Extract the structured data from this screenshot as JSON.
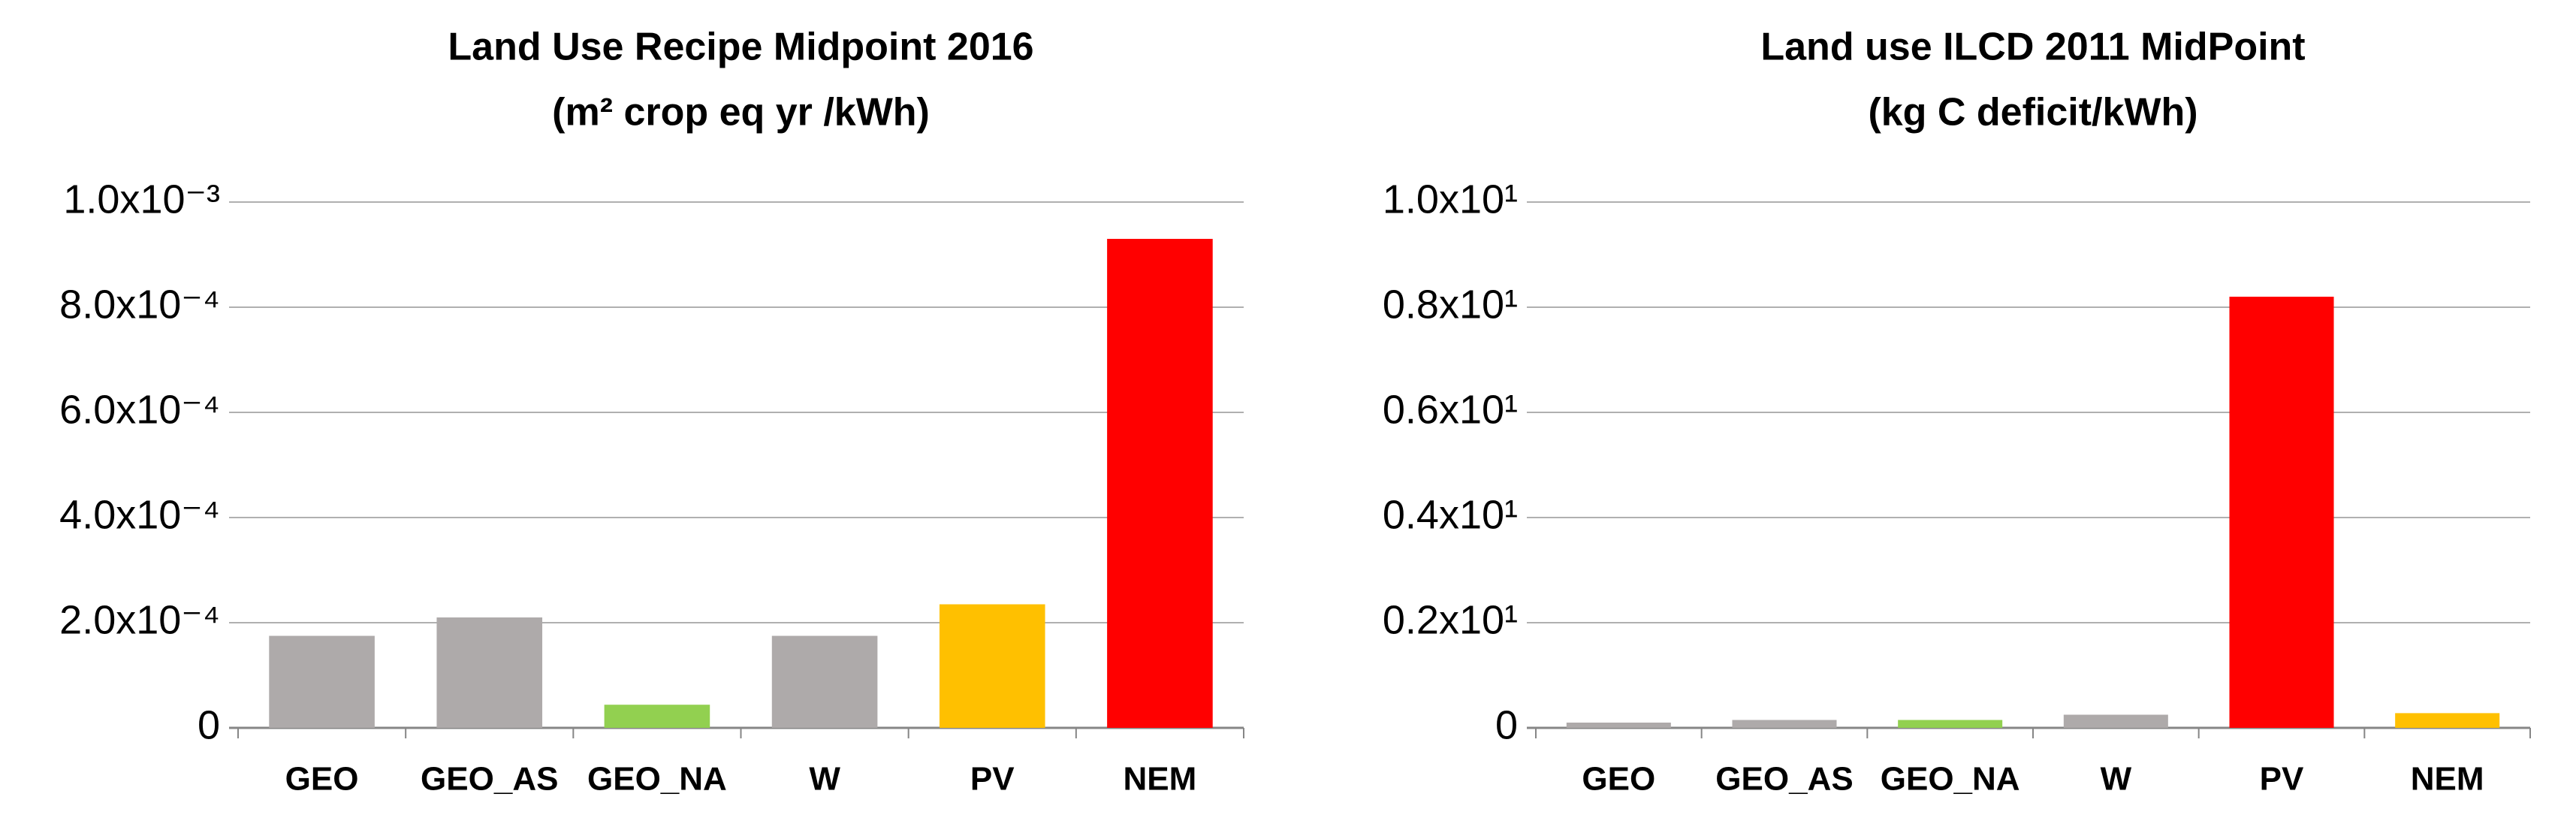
{
  "chart_data": [
    {
      "type": "bar",
      "title": "Land Use Recipe Midpoint 2016",
      "subtitle": "(m² crop eq yr /kWh)",
      "categories": [
        "GEO",
        "GEO_AS",
        "GEO_NA",
        "W",
        "PV",
        "NEM"
      ],
      "values": [
        0.000175,
        0.00021,
        4.4e-05,
        0.000175,
        0.000235,
        0.00093
      ],
      "colors": [
        "#aeaaaa",
        "#aeaaaa",
        "#92d050",
        "#aeaaaa",
        "#ffc000",
        "#ff0000"
      ],
      "ylim": [
        0,
        0.001
      ],
      "yticks": [
        0,
        {
          "value": 0.0002,
          "label": "2.0x10⁻⁴"
        },
        {
          "value": 0.0004,
          "label": "4.0x10⁻⁴"
        },
        {
          "value": 0.0006,
          "label": "6.0x10⁻⁴"
        },
        {
          "value": 0.0008,
          "label": "8.0x10⁻⁴"
        },
        {
          "value": 0.001,
          "label": "1.0x10⁻³"
        }
      ],
      "grid": true
    },
    {
      "type": "bar",
      "title": "Land use  ILCD 2011 MidPoint",
      "subtitle": "(kg C deficit/kWh)",
      "categories": [
        "GEO",
        "GEO_AS",
        "GEO_NA",
        "W",
        "PV",
        "NEM"
      ],
      "values": [
        0.1,
        0.15,
        0.15,
        0.25,
        8.2,
        0.28
      ],
      "colors": [
        "#aeaaaa",
        "#aeaaaa",
        "#92d050",
        "#aeaaaa",
        "#ff0000",
        "#ffc000"
      ],
      "ylim": [
        0,
        10
      ],
      "yticks": [
        0,
        {
          "value": 2,
          "label": "0.2x10¹"
        },
        {
          "value": 4,
          "label": "0.4x10¹"
        },
        {
          "value": 6,
          "label": "0.6x10¹"
        },
        {
          "value": 8,
          "label": "0.8x10¹"
        },
        {
          "value": 10,
          "label": "1.0x10¹"
        }
      ],
      "grid": true
    }
  ]
}
